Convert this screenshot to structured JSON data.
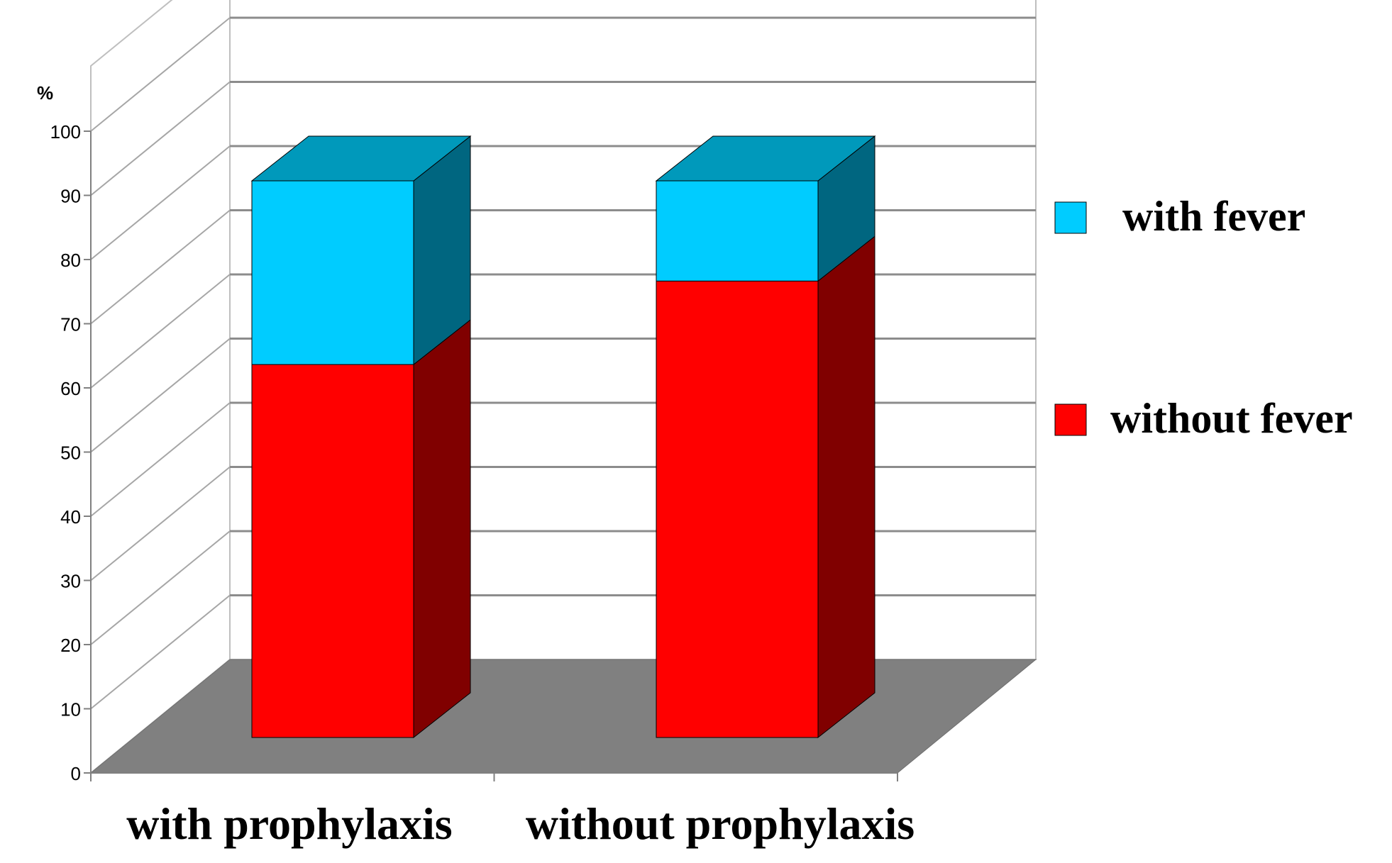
{
  "chart_data": {
    "type": "bar",
    "stacked": true,
    "three_d": true,
    "y_unit_label": "%",
    "categories": [
      "with prophylaxis",
      "without prophylaxis"
    ],
    "series": [
      {
        "name": "without fever",
        "values": [
          67,
          82
        ],
        "color": "#ff0000",
        "side_color": "#800000"
      },
      {
        "name": "with fever",
        "values": [
          33,
          18
        ],
        "color": "#00ccff",
        "top_color": "#0099bb",
        "side_color": "#006680"
      }
    ],
    "ylim": [
      0,
      100
    ],
    "yticks": [
      "0",
      "10",
      "20",
      "30",
      "40",
      "50",
      "60",
      "70",
      "80",
      "90",
      "100"
    ],
    "grid": true,
    "legend_position": "right",
    "floor_color": "#808080"
  }
}
